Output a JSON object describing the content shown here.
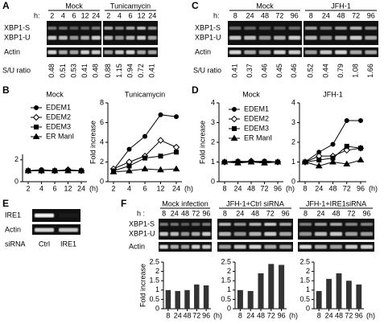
{
  "figure": {
    "A": {
      "label": "A",
      "time_prefix": "h:",
      "rows": [
        "XBP1-S",
        "XBP1-U",
        "Actin"
      ],
      "ratio_label": "S/U ratio",
      "groups": [
        {
          "name": "Mock",
          "times": [
            2,
            4,
            6,
            12,
            24
          ],
          "ratios": [
            0.48,
            0.51,
            0.53,
            0.41,
            0.48
          ]
        },
        {
          "name": "Tunicamycin",
          "times": [
            2,
            4,
            6,
            12,
            24
          ],
          "ratios": [
            0.88,
            1.15,
            0.94,
            0.72,
            0.41
          ]
        }
      ]
    },
    "B": {
      "label": "B"
    },
    "C": {
      "label": "C",
      "time_prefix": "h:",
      "rows": [
        "XBP1-S",
        "XBP1-U",
        "Actin"
      ],
      "ratio_label": "S/U ratio",
      "groups": [
        {
          "name": "Mock",
          "times": [
            8,
            24,
            48,
            72,
            96
          ],
          "ratios": [
            0.41,
            0.37,
            0.46,
            0.45,
            0.46
          ]
        },
        {
          "name": "JFH-1",
          "times": [
            8,
            24,
            48,
            72,
            96
          ],
          "ratios": [
            0.52,
            0.44,
            0.79,
            1.08,
            1.66
          ]
        }
      ]
    },
    "D": {
      "label": "D"
    },
    "E": {
      "label": "E",
      "rows": [
        "IRE1",
        "Actin"
      ],
      "lane_title": "siRNA",
      "lanes": [
        "Ctrl",
        "IRE1"
      ]
    },
    "F": {
      "label": "F",
      "time_prefix": "h :",
      "rows": [
        "XBP1-S",
        "XBP1-U",
        "Actin"
      ],
      "groups": [
        {
          "name": "Mock infection",
          "times": [
            8,
            24,
            48,
            72,
            96
          ]
        },
        {
          "name": "JFH-1+Ctrl siRNA",
          "times": [
            8,
            24,
            48,
            72,
            96
          ]
        },
        {
          "name": "JFH-1+IRE1siRNA",
          "times": [
            8,
            24,
            48,
            72,
            96
          ]
        }
      ]
    }
  },
  "chart_data": [
    {
      "type": "line",
      "title": "Mock",
      "categories": [
        2,
        4,
        6,
        12,
        24
      ],
      "x_unit": "(h)",
      "ylim": [
        0,
        2.5
      ],
      "yticks": [
        0,
        2
      ],
      "legend": true,
      "series": [
        {
          "name": "EDEM1",
          "marker": "circle",
          "color": "#000",
          "fill": "#000",
          "values": [
            1,
            1.1,
            1,
            1,
            1
          ]
        },
        {
          "name": "EDEM2",
          "marker": "diamond",
          "color": "#000",
          "fill": "#fff",
          "values": [
            1,
            1,
            1,
            1.1,
            1
          ]
        },
        {
          "name": "EDEM3",
          "marker": "square",
          "color": "#000",
          "fill": "#000",
          "values": [
            1,
            1,
            1,
            1,
            1
          ]
        },
        {
          "name": "ER ManI",
          "marker": "triangle",
          "color": "#000",
          "fill": "#000",
          "values": [
            1,
            1,
            1,
            1,
            1
          ]
        }
      ]
    },
    {
      "type": "line",
      "title": "Tunicamycin",
      "ylabel": "Fold increase",
      "categories": [
        2,
        4,
        6,
        12,
        24
      ],
      "x_unit": "(h)",
      "ylim": [
        0,
        8
      ],
      "yticks": [
        0,
        2,
        4,
        6,
        8
      ],
      "series": [
        {
          "marker": "circle",
          "color": "#000",
          "fill": "#000",
          "values": [
            1.2,
            3.3,
            4.6,
            6.8,
            6.6
          ]
        },
        {
          "marker": "diamond",
          "color": "#000",
          "fill": "#fff",
          "values": [
            1.3,
            2.0,
            2.6,
            4.2,
            3.5
          ]
        },
        {
          "marker": "square",
          "color": "#000",
          "fill": "#000",
          "values": [
            1.1,
            1.6,
            2.4,
            2.6,
            3.0
          ]
        },
        {
          "marker": "triangle",
          "color": "#000",
          "fill": "#000",
          "values": [
            1.0,
            1.1,
            1.3,
            1.2,
            1.3
          ]
        }
      ]
    },
    {
      "type": "line",
      "title": "Mock",
      "ylabel": "Fold increase",
      "categories": [
        8,
        24,
        48,
        72,
        96
      ],
      "x_unit": "(h)",
      "ylim": [
        0,
        4
      ],
      "yticks": [
        0,
        1,
        2,
        3,
        4
      ],
      "legend": true,
      "series": [
        {
          "name": "EDEM1",
          "marker": "circle",
          "color": "#000",
          "fill": "#000",
          "values": [
            1,
            1.05,
            1,
            1.05,
            1
          ]
        },
        {
          "name": "EDEM2",
          "marker": "diamond",
          "color": "#000",
          "fill": "#fff",
          "values": [
            1,
            1,
            1.05,
            1,
            1
          ]
        },
        {
          "name": "EDEM3",
          "marker": "square",
          "color": "#000",
          "fill": "#000",
          "values": [
            1,
            1,
            1,
            1,
            1
          ]
        },
        {
          "name": "ER ManI",
          "marker": "triangle",
          "color": "#000",
          "fill": "#000",
          "values": [
            1,
            0.95,
            1,
            0.95,
            1
          ]
        }
      ]
    },
    {
      "type": "line",
      "title": "JFH-1",
      "categories": [
        8,
        24,
        48,
        72,
        96
      ],
      "x_unit": "(h)",
      "ylim": [
        0,
        4
      ],
      "yticks": [
        0,
        1,
        2,
        3,
        4
      ],
      "series": [
        {
          "marker": "circle",
          "color": "#000",
          "fill": "#000",
          "values": [
            1,
            1.5,
            1.9,
            3.1,
            3.1
          ]
        },
        {
          "marker": "diamond",
          "color": "#000",
          "fill": "#fff",
          "values": [
            1,
            1.3,
            1.3,
            1.6,
            1.7
          ]
        },
        {
          "marker": "square",
          "color": "#000",
          "fill": "#000",
          "values": [
            1,
            1.1,
            1.2,
            1.8,
            1.7
          ]
        },
        {
          "marker": "triangle",
          "color": "#000",
          "fill": "#000",
          "values": [
            1,
            0.8,
            1.0,
            0.9,
            1.1
          ]
        }
      ]
    },
    {
      "type": "bar",
      "ylabel": "Fold increase",
      "categories": [
        8,
        24,
        48,
        72,
        96
      ],
      "x_unit": "(h)",
      "color": "#333",
      "ylim": [
        0,
        2.5
      ],
      "yticks": [
        0,
        0.5,
        1,
        1.5,
        2,
        2.5
      ],
      "values": [
        1,
        0.95,
        1.0,
        1.3,
        1.25
      ]
    },
    {
      "type": "bar",
      "categories": [
        8,
        24,
        48,
        72,
        96
      ],
      "x_unit": "(h)",
      "color": "#333",
      "ylim": [
        0,
        2.5
      ],
      "yticks": [
        0,
        0.5,
        1,
        1.5,
        2,
        2.5
      ],
      "values": [
        1,
        0.95,
        1.9,
        2.4,
        2.35
      ]
    },
    {
      "type": "bar",
      "categories": [
        8,
        24,
        48,
        72,
        96
      ],
      "x_unit": "(h)",
      "color": "#333",
      "ylim": [
        0,
        2.5
      ],
      "yticks": [
        0,
        0.5,
        1,
        1.5,
        2,
        2.5
      ],
      "values": [
        0.95,
        1.6,
        1.9,
        1.5,
        1.3
      ]
    }
  ]
}
